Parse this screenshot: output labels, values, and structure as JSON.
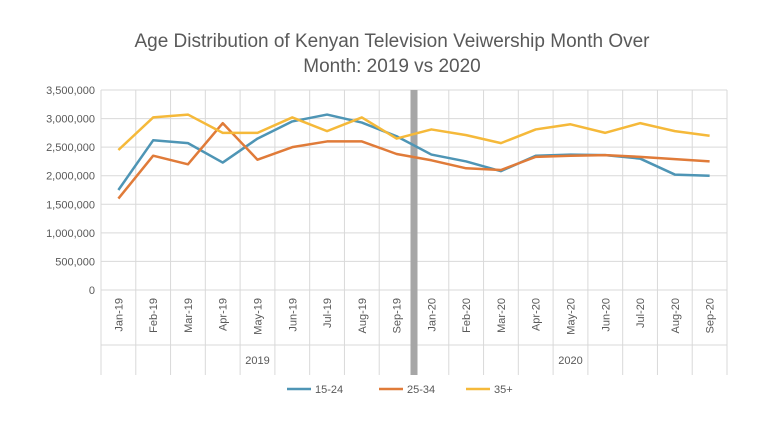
{
  "chart_data": {
    "type": "line",
    "title_lines": [
      "Age Distribution of Kenyan Television Veiwership Month Over",
      "Month: 2019 vs 2020"
    ],
    "categories": [
      "Jan-19",
      "Feb-19",
      "Mar-19",
      "Apr-19",
      "May-19",
      "Jun-19",
      "Jul-19",
      "Aug-19",
      "Sep-19",
      "Jan-20",
      "Feb-20",
      "Mar-20",
      "Apr-20",
      "May-20",
      "Jun-20",
      "Jul-20",
      "Aug-20",
      "Sep-20"
    ],
    "groups": [
      {
        "label": "2019",
        "count": 9
      },
      {
        "label": "2020",
        "count": 9
      }
    ],
    "ylim": [
      0,
      3500000
    ],
    "yticks": [
      0,
      500000,
      1000000,
      1500000,
      2000000,
      2500000,
      3000000,
      3500000
    ],
    "ytick_labels": [
      "0",
      "500,000",
      "1,000,000",
      "1,500,000",
      "2,000,000",
      "2,500,000",
      "3,000,000",
      "3,500,000"
    ],
    "grid": true,
    "legend_position": "bottom",
    "divider_color": "#a6a6a6",
    "series": [
      {
        "name": "15-24",
        "color": "#4e95b5",
        "values": [
          1750000,
          2620000,
          2570000,
          2230000,
          2650000,
          2950000,
          3070000,
          2930000,
          2690000,
          2370000,
          2250000,
          2080000,
          2350000,
          2370000,
          2360000,
          2300000,
          2020000,
          2000000
        ]
      },
      {
        "name": "25-34",
        "color": "#e07b39",
        "values": [
          1600000,
          2350000,
          2200000,
          2920000,
          2280000,
          2500000,
          2600000,
          2600000,
          2380000,
          2270000,
          2130000,
          2100000,
          2330000,
          2350000,
          2360000,
          2330000,
          2290000,
          2250000
        ]
      },
      {
        "name": "35+",
        "color": "#f5b93a",
        "values": [
          2450000,
          3020000,
          3070000,
          2750000,
          2750000,
          3020000,
          2780000,
          3020000,
          2650000,
          2810000,
          2710000,
          2570000,
          2810000,
          2900000,
          2750000,
          2920000,
          2780000,
          2700000
        ]
      }
    ]
  }
}
